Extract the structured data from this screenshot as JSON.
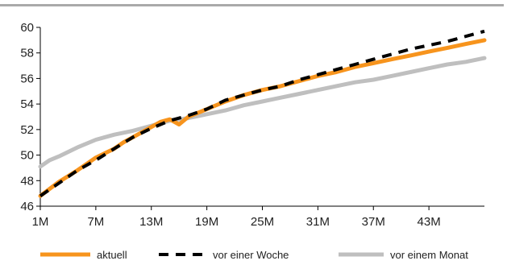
{
  "chart_data": {
    "type": "line",
    "title": "",
    "xlabel": "",
    "ylabel": "",
    "x_tick_labels": [
      "1M",
      "7M",
      "13M",
      "19M",
      "25M",
      "31M",
      "37M",
      "43M"
    ],
    "x_ticks": [
      1,
      7,
      13,
      19,
      25,
      31,
      37,
      43
    ],
    "xlim": [
      1,
      49
    ],
    "y_ticks": [
      46,
      48,
      50,
      52,
      54,
      56,
      58,
      60
    ],
    "ylim": [
      46,
      60
    ],
    "grid": false,
    "legend_position": "bottom",
    "series": [
      {
        "name": "aktuell",
        "color": "#f7941d",
        "style": "solid",
        "x": [
          1,
          3,
          5,
          7,
          9,
          10,
          11,
          13,
          14,
          15,
          16,
          17,
          19,
          21,
          23,
          25,
          27,
          29,
          31,
          33,
          35,
          37,
          39,
          41,
          43,
          45,
          47,
          49
        ],
        "y": [
          46.8,
          47.9,
          48.8,
          49.8,
          50.5,
          51.0,
          51.4,
          52.2,
          52.6,
          52.8,
          52.4,
          53.0,
          53.6,
          54.2,
          54.7,
          55.1,
          55.4,
          55.8,
          56.2,
          56.5,
          56.9,
          57.2,
          57.5,
          57.8,
          58.1,
          58.4,
          58.7,
          59.0
        ]
      },
      {
        "name": "vor einer Woche",
        "color": "#000000",
        "style": "dashed",
        "x": [
          1,
          3,
          5,
          7,
          9,
          11,
          13,
          15,
          17,
          19,
          21,
          23,
          25,
          27,
          29,
          31,
          33,
          35,
          37,
          39,
          41,
          43,
          45,
          47,
          49
        ],
        "y": [
          46.8,
          47.8,
          48.8,
          49.6,
          50.5,
          51.4,
          52.1,
          52.7,
          53.1,
          53.6,
          54.3,
          54.7,
          55.1,
          55.4,
          55.9,
          56.3,
          56.7,
          57.1,
          57.5,
          57.9,
          58.3,
          58.6,
          58.9,
          59.3,
          59.7
        ]
      },
      {
        "name": "vor einem Monat",
        "color": "#bfbfbf",
        "style": "solid",
        "x": [
          1,
          2,
          3,
          5,
          7,
          9,
          11,
          13,
          15,
          17,
          19,
          21,
          23,
          25,
          27,
          29,
          31,
          33,
          35,
          37,
          39,
          41,
          43,
          45,
          47,
          49
        ],
        "y": [
          49.1,
          49.6,
          49.9,
          50.6,
          51.2,
          51.6,
          51.9,
          52.3,
          52.7,
          52.9,
          53.2,
          53.5,
          53.9,
          54.2,
          54.5,
          54.8,
          55.1,
          55.4,
          55.7,
          55.9,
          56.2,
          56.5,
          56.8,
          57.1,
          57.3,
          57.6
        ]
      }
    ]
  }
}
